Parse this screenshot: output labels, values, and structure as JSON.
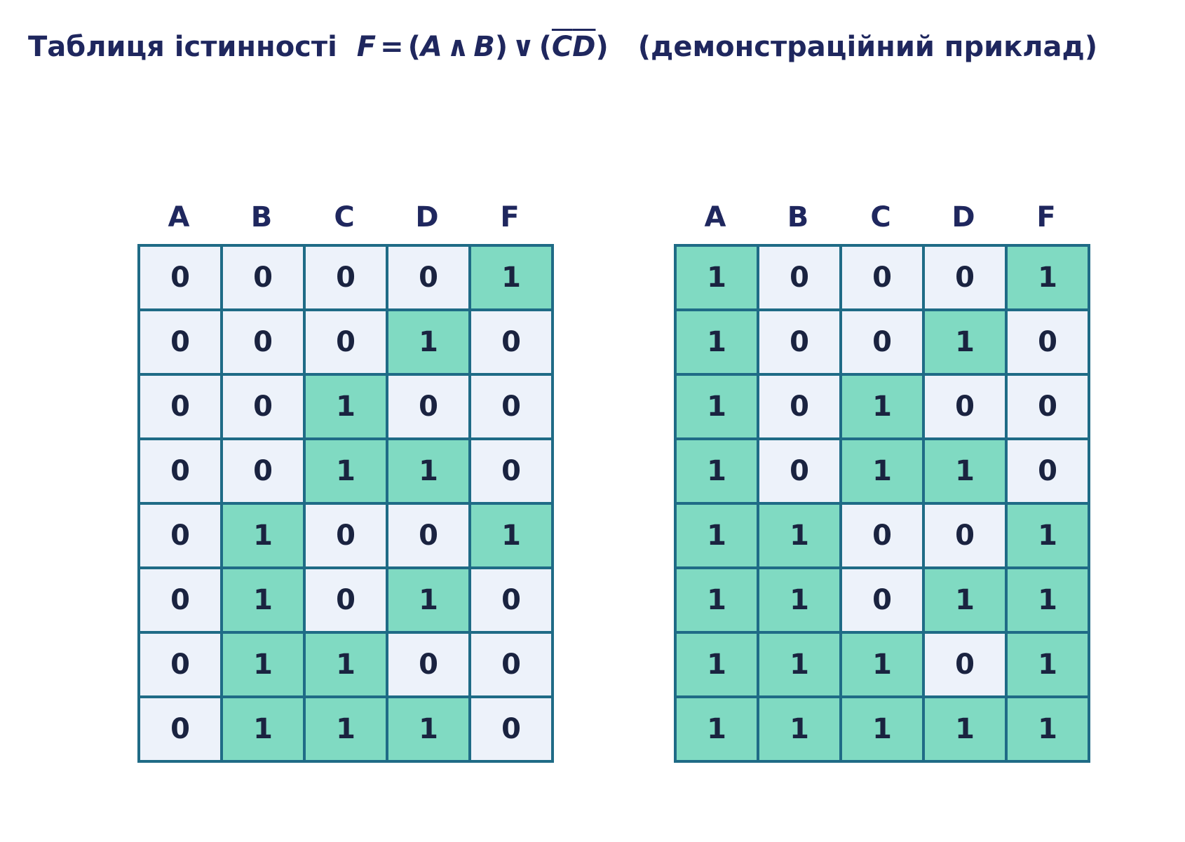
{
  "title": {
    "prefix": "Таблиця істинності",
    "F": "F",
    "eq": "=",
    "open1": "(",
    "A": "A",
    "and": "∧",
    "B": "B",
    "close1": ")",
    "or": "∨",
    "open2": "(",
    "C": "C",
    "D": "D",
    "close2": ")",
    "suffix": "(демонстраційний приклад)"
  },
  "headers": [
    "A",
    "B",
    "C",
    "D",
    "F"
  ],
  "tables": [
    {
      "rows": [
        [
          0,
          0,
          0,
          0,
          1
        ],
        [
          0,
          0,
          0,
          1,
          0
        ],
        [
          0,
          0,
          1,
          0,
          0
        ],
        [
          0,
          0,
          1,
          1,
          0
        ],
        [
          0,
          1,
          0,
          0,
          1
        ],
        [
          0,
          1,
          0,
          1,
          0
        ],
        [
          0,
          1,
          1,
          0,
          0
        ],
        [
          0,
          1,
          1,
          1,
          0
        ]
      ]
    },
    {
      "rows": [
        [
          1,
          0,
          0,
          0,
          1
        ],
        [
          1,
          0,
          0,
          1,
          0
        ],
        [
          1,
          0,
          1,
          0,
          0
        ],
        [
          1,
          0,
          1,
          1,
          0
        ],
        [
          1,
          1,
          0,
          0,
          1
        ],
        [
          1,
          1,
          0,
          1,
          1
        ],
        [
          1,
          1,
          1,
          0,
          1
        ],
        [
          1,
          1,
          1,
          1,
          1
        ]
      ]
    }
  ],
  "colors": {
    "one": "#80dac2",
    "zero": "#edf2fa",
    "border": "#1f6b86",
    "text": "#1f275e"
  }
}
